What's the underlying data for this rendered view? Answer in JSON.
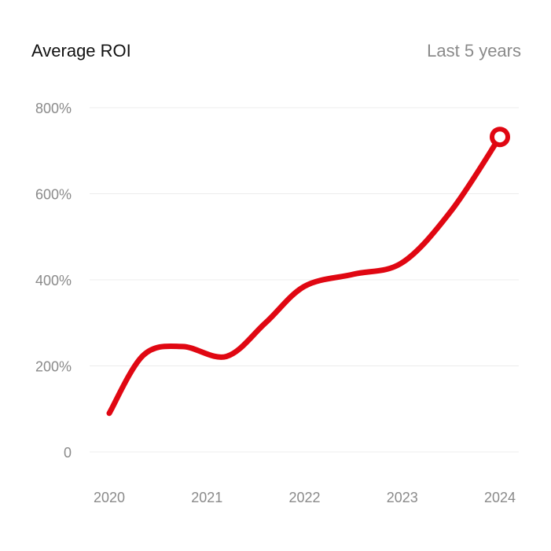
{
  "header": {
    "title": "Average ROI",
    "range_label": "Last 5 years"
  },
  "chart_data": {
    "type": "line",
    "title": "Average ROI",
    "subtitle": "Last 5 years",
    "xlabel": "",
    "ylabel": "",
    "xlim": [
      2020,
      2024
    ],
    "ylim": [
      0,
      800
    ],
    "x_ticks": [
      2020,
      2021,
      2022,
      2023,
      2024
    ],
    "x_tick_labels": [
      "2020",
      "2021",
      "2022",
      "2023",
      "2024"
    ],
    "y_ticks": [
      0,
      200,
      400,
      600,
      800
    ],
    "y_tick_labels": [
      "0",
      "200%",
      "400%",
      "600%",
      "800%"
    ],
    "grid": true,
    "series": [
      {
        "name": "Average ROI",
        "color": "#e00712",
        "x": [
          2020.0,
          2020.35,
          2020.75,
          2021.2,
          2021.6,
          2022.0,
          2022.5,
          2023.0,
          2023.5,
          2024.0
        ],
        "values": [
          90,
          225,
          245,
          222,
          300,
          385,
          413,
          440,
          560,
          732
        ]
      }
    ],
    "highlight_last_point": true
  }
}
